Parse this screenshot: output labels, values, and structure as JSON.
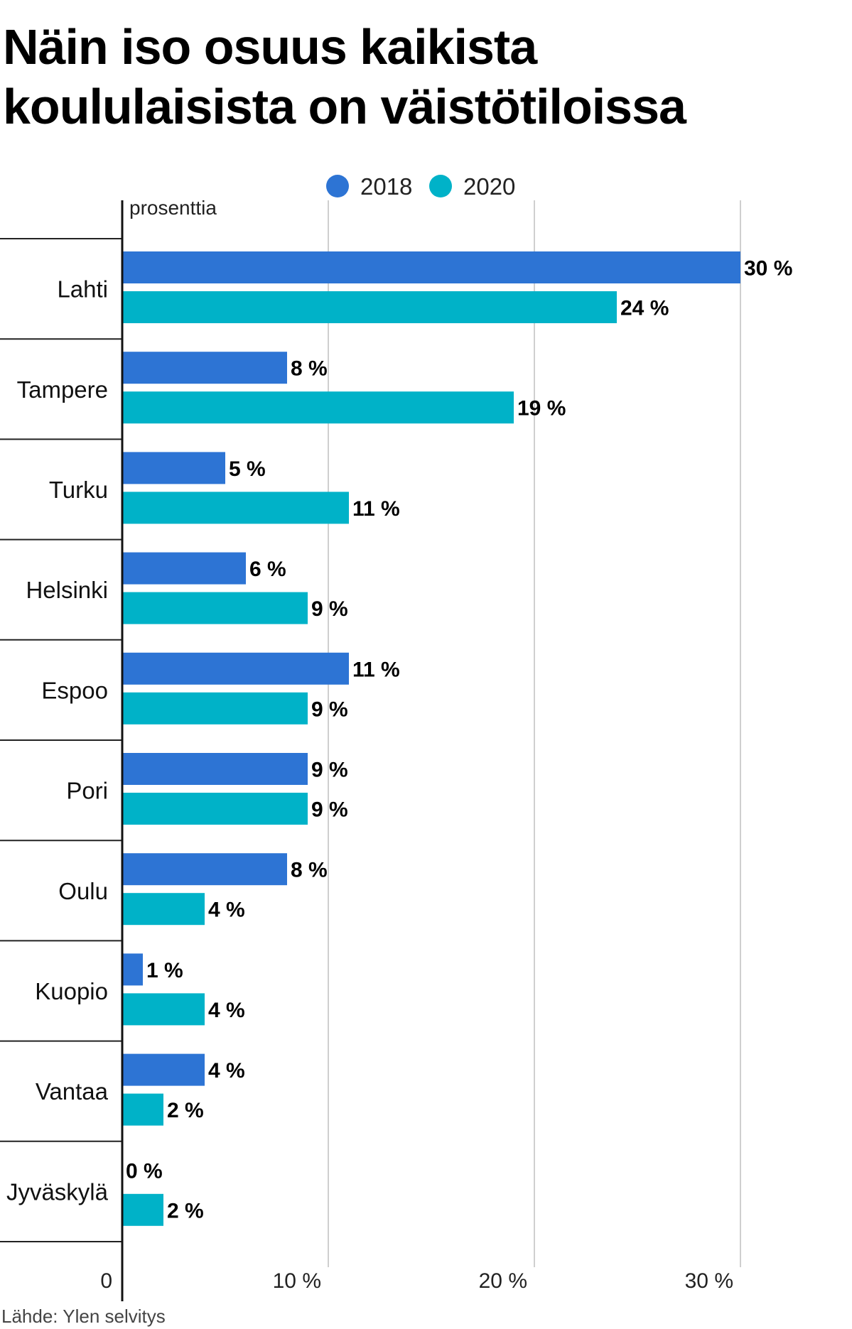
{
  "title": "Näin iso osuus kaikista koululaisista on väistötiloissa",
  "source": "Lähde: Ylen selvitys",
  "chart_data": {
    "type": "bar",
    "orientation": "horizontal",
    "unit_label": "prosenttia",
    "categories": [
      "Lahti",
      "Tampere",
      "Turku",
      "Helsinki",
      "Espoo",
      "Pori",
      "Oulu",
      "Kuopio",
      "Vantaa",
      "Jyväskylä"
    ],
    "series": [
      {
        "name": "2018",
        "color": "#2d74d4",
        "values": [
          30,
          8,
          5,
          6,
          11,
          9,
          8,
          1,
          4,
          0
        ],
        "labels": [
          "30 %",
          "8 %",
          "5 %",
          "6 %",
          "11 %",
          "9 %",
          "8 %",
          "1 %",
          "4 %",
          "0 %"
        ]
      },
      {
        "name": "2020",
        "color": "#00b2c8",
        "values": [
          24,
          19,
          11,
          9,
          9,
          9,
          4,
          4,
          2,
          2
        ],
        "labels": [
          "24 %",
          "19 %",
          "11 %",
          "9 %",
          "9 %",
          "9 %",
          "4 %",
          "4 %",
          "2 %",
          "2 %"
        ]
      }
    ],
    "xlim": [
      0,
      30
    ],
    "xticks": [
      0,
      10,
      20,
      30
    ],
    "xtick_labels": [
      "0",
      "10 %",
      "20 %",
      "30 %"
    ],
    "grid": true,
    "legend_position": "top-center"
  }
}
